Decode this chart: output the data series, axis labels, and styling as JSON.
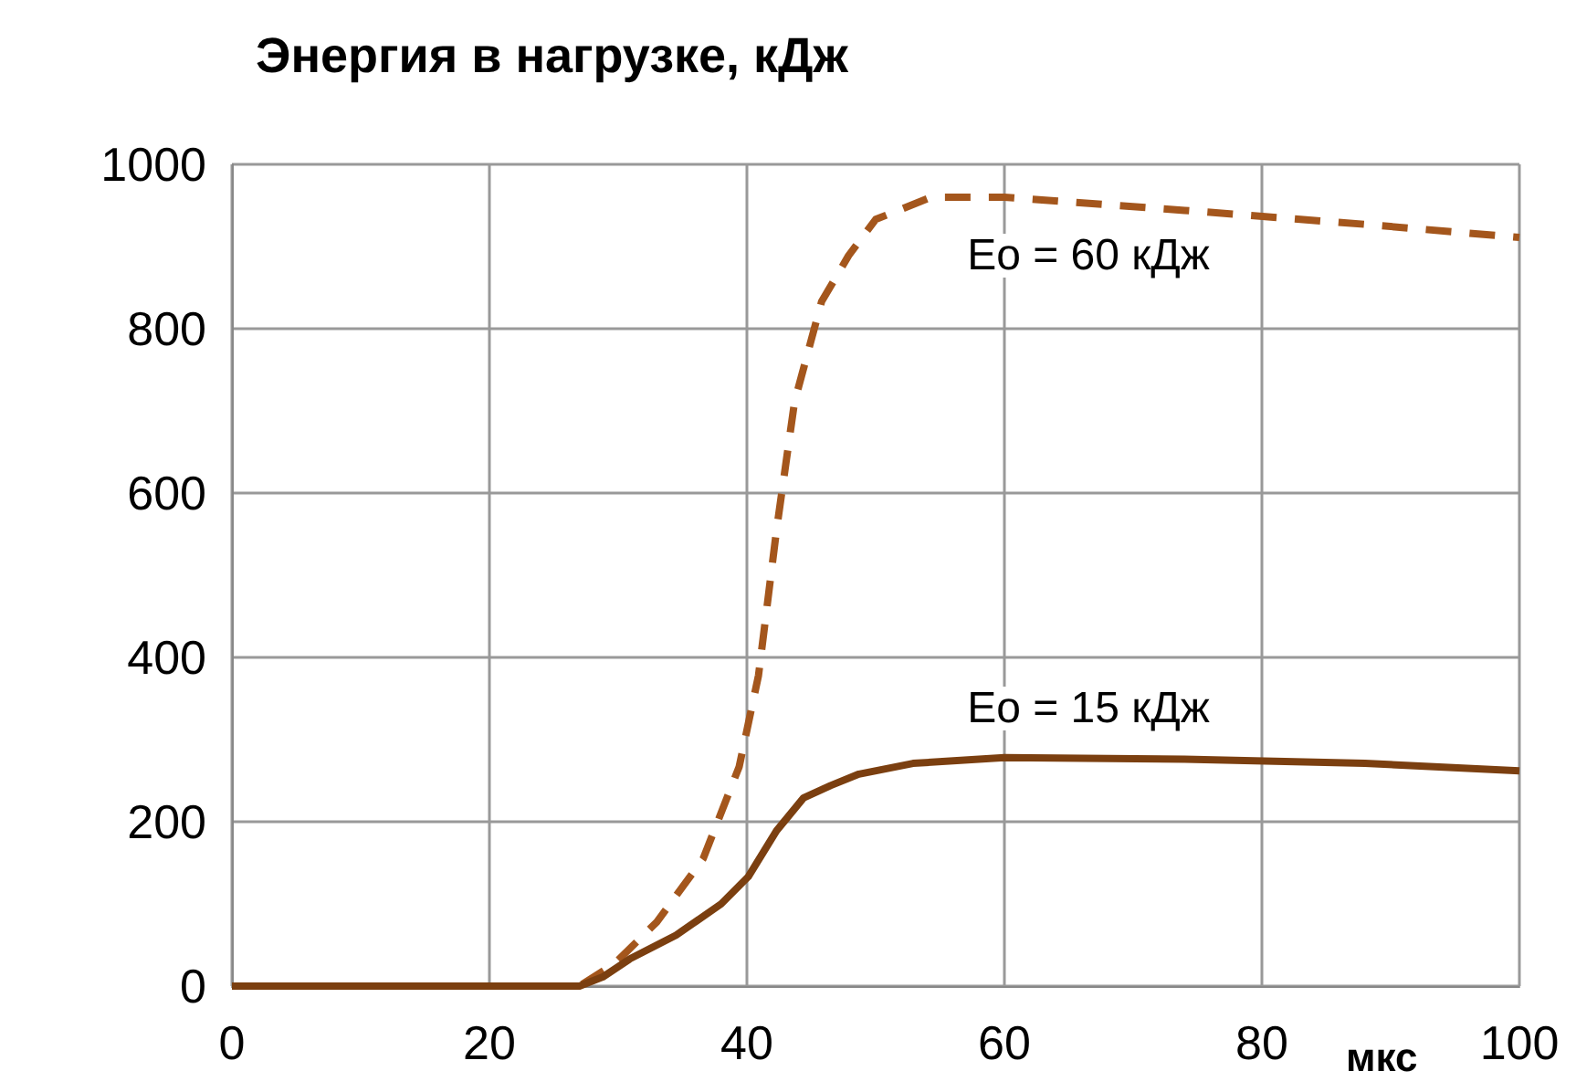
{
  "chart_data": {
    "type": "line",
    "title": "Энергия в нагрузке, кДж",
    "xlabel": "мкс",
    "xlim": [
      0,
      100
    ],
    "xticks": [
      0,
      20,
      40,
      60,
      80,
      100
    ],
    "ylim": [
      0,
      1000
    ],
    "yticks": [
      0,
      200,
      400,
      600,
      800,
      1000
    ],
    "grid": true,
    "marker": "none",
    "series": [
      {
        "color": "#a4561c",
        "line_style": "dashed",
        "x": [
          0,
          20,
          27,
          29.7,
          33,
          36.6,
          39.4,
          40.9,
          42.3,
          43.7,
          45.8,
          47.9,
          50,
          54.3,
          60,
          74,
          88,
          100
        ],
        "values": [
          0,
          0,
          0,
          27,
          78,
          155,
          267,
          378,
          555,
          711,
          833,
          889,
          933,
          960,
          960,
          944,
          927,
          911
        ]
      },
      {
        "color": "#7b3f10",
        "line_style": "solid",
        "x": [
          0,
          20,
          27,
          28.8,
          30.9,
          34.5,
          38,
          40.1,
          42.3,
          44.4,
          46.5,
          48.7,
          52.9,
          60,
          74,
          88,
          100
        ],
        "values": [
          0,
          0,
          0,
          11,
          33,
          62,
          100,
          133,
          189,
          229,
          244,
          258,
          271,
          278,
          276,
          271,
          262
        ]
      }
    ],
    "annotations": [
      "Eo = 60 кДж",
      "Eo = 15 кДж"
    ]
  }
}
